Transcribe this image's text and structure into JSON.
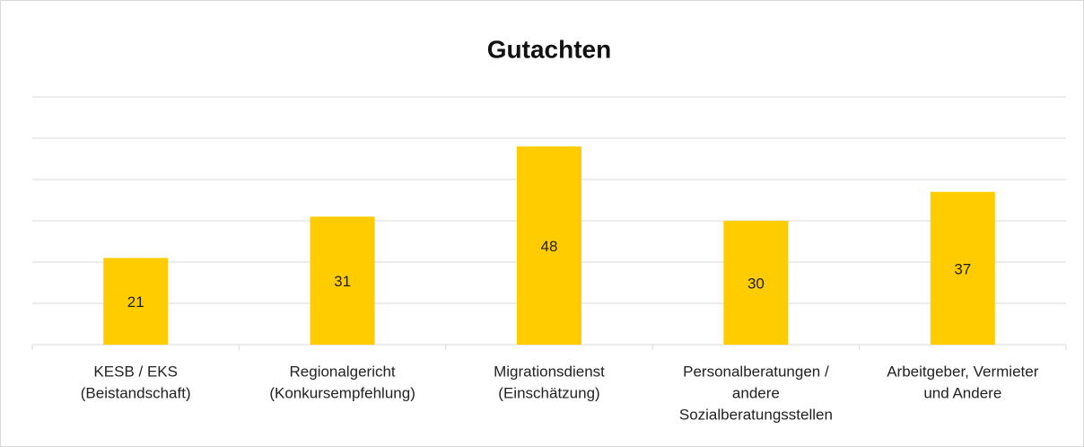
{
  "chart_data": {
    "type": "bar",
    "title": "Gutachten",
    "categories": [
      [
        "KESB / EKS",
        "(Beistandschaft)"
      ],
      [
        "Regionalgericht",
        "(Konkursempfehlung)"
      ],
      [
        "Migrationsdienst",
        "(Einschätzung)"
      ],
      [
        "Personalberatungen /",
        "andere",
        "Sozialberatungsstellen"
      ],
      [
        "Arbeitgeber, Vermieter",
        "und Andere"
      ]
    ],
    "values": [
      21,
      31,
      48,
      30,
      37
    ],
    "color": "#ffcc00",
    "ylim": [
      0,
      60
    ],
    "yticks": [
      0,
      10,
      20,
      30,
      40,
      50,
      60
    ],
    "grid": true
  }
}
